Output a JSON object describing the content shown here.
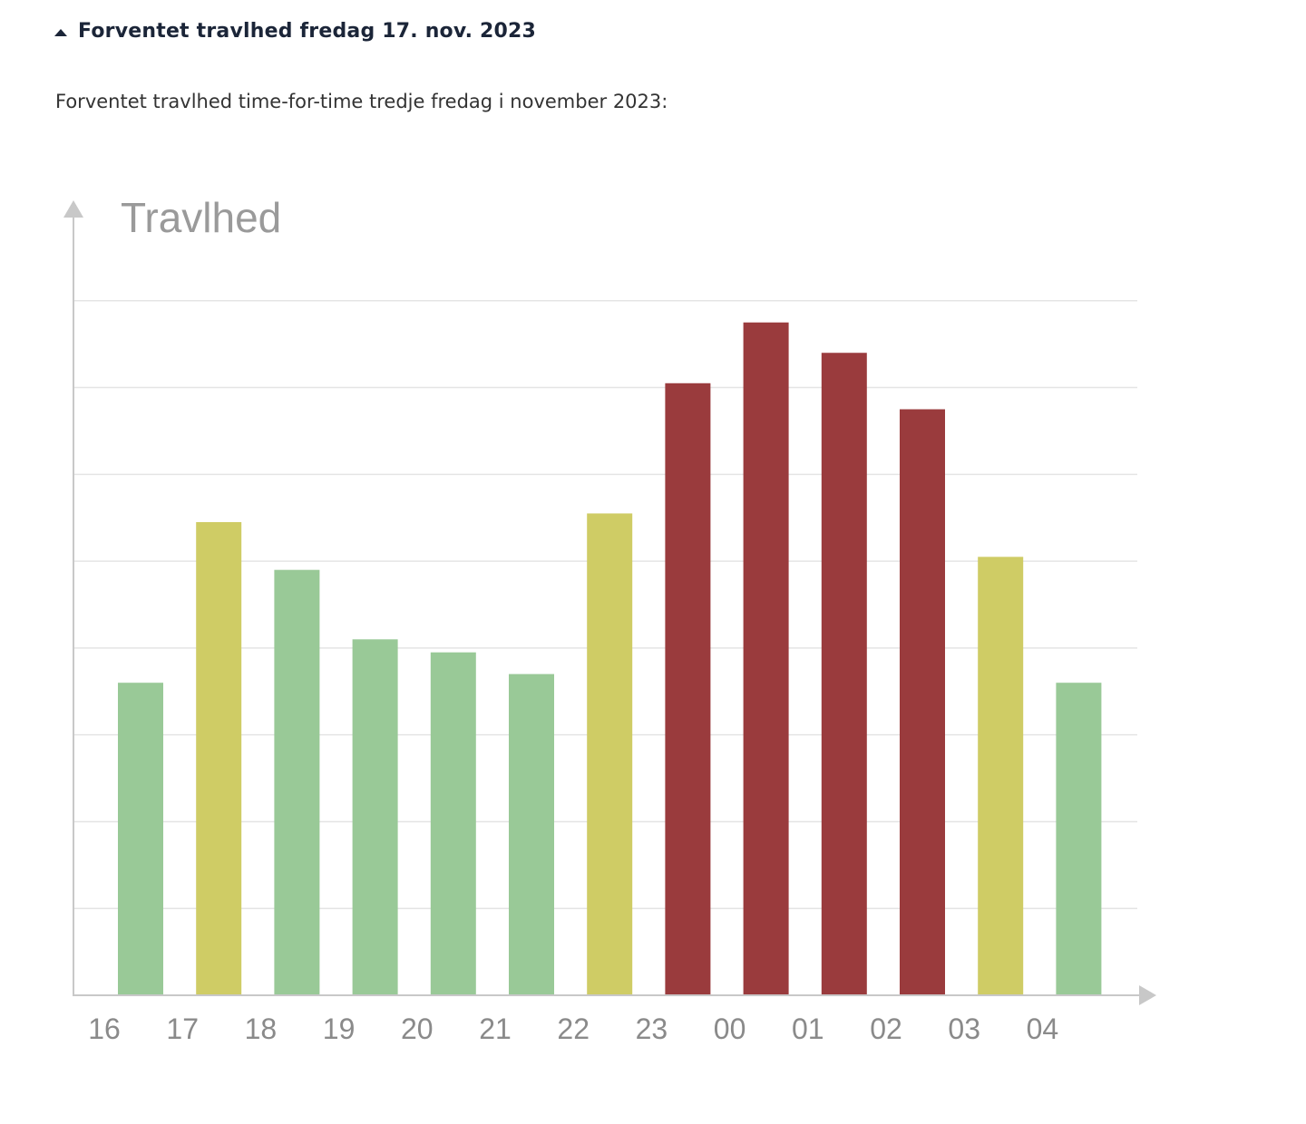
{
  "section": {
    "title": "Forventet travlhed fredag 17. nov. 2023",
    "intro": "Forventet travlhed time-for-time tredje fredag i november 2023:"
  },
  "chart_data": {
    "type": "bar",
    "ylabel": "Travlhed",
    "xlabel": "",
    "categories": [
      "16",
      "17",
      "18",
      "19",
      "20",
      "21",
      "22",
      "23",
      "00",
      "01",
      "02",
      "03",
      "04"
    ],
    "values": [
      36,
      54.5,
      49,
      41,
      39.5,
      37,
      55.5,
      70.5,
      77.5,
      74,
      67.5,
      50.5,
      36
    ],
    "level": [
      "low",
      "medium",
      "low",
      "low",
      "low",
      "low",
      "medium",
      "high",
      "high",
      "high",
      "high",
      "medium",
      "low"
    ],
    "colors": {
      "low": "#99c997",
      "medium": "#cfcc65",
      "high": "#9a3b3d"
    },
    "ylim": [
      0,
      90
    ],
    "grid": true
  }
}
